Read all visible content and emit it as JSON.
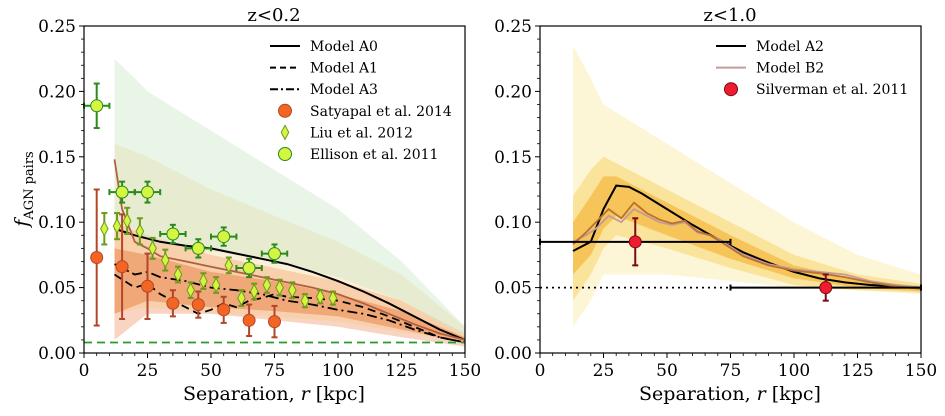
{
  "chart_data": [
    {
      "type": "line",
      "title": "z<0.2",
      "xlabel": "Separation, r [kpc]",
      "ylabel": "f_AGN pairs",
      "xlim": [
        0,
        150
      ],
      "ylim": [
        0,
        0.25
      ],
      "xticks": [
        0,
        25,
        50,
        75,
        100,
        125,
        150
      ],
      "yticks": [
        0.0,
        0.05,
        0.1,
        0.15,
        0.2,
        0.25
      ],
      "legend_position": "top-right",
      "series": [
        {
          "name": "Model A0",
          "style": "solid",
          "color": "#000000",
          "x": [
            12,
            20,
            30,
            40,
            50,
            60,
            70,
            80,
            90,
            100,
            110,
            120,
            130,
            140,
            150
          ],
          "y": [
            0.095,
            0.09,
            0.085,
            0.082,
            0.08,
            0.076,
            0.072,
            0.068,
            0.062,
            0.055,
            0.047,
            0.038,
            0.028,
            0.018,
            0.01
          ]
        },
        {
          "name": "Model A1",
          "style": "dashed",
          "color": "#000000",
          "x": [
            12,
            20,
            25,
            30,
            35,
            40,
            45,
            50,
            55,
            60,
            65,
            70,
            75,
            80,
            90,
            100,
            110,
            120,
            130,
            140,
            150
          ],
          "y": [
            0.06,
            0.05,
            0.053,
            0.045,
            0.04,
            0.035,
            0.03,
            0.033,
            0.038,
            0.035,
            0.04,
            0.042,
            0.045,
            0.043,
            0.042,
            0.04,
            0.035,
            0.028,
            0.02,
            0.012,
            0.008
          ]
        },
        {
          "name": "Model A3",
          "style": "dashdot",
          "color": "#000000",
          "x": [
            12,
            15,
            20,
            25,
            30,
            40,
            50,
            60,
            70,
            80,
            90,
            100,
            110,
            120,
            130,
            140,
            150
          ],
          "y": [
            0.068,
            0.065,
            0.06,
            0.062,
            0.058,
            0.055,
            0.05,
            0.048,
            0.045,
            0.04,
            0.037,
            0.033,
            0.03,
            0.025,
            0.018,
            0.012,
            0.008
          ]
        },
        {
          "name": "",
          "style": "solid",
          "color": "#b06040",
          "x": [
            12,
            15,
            20,
            25,
            30,
            40,
            50,
            60,
            70,
            80,
            90,
            100,
            110,
            120,
            130,
            140,
            150
          ],
          "y": [
            0.148,
            0.11,
            0.085,
            0.08,
            0.074,
            0.07,
            0.066,
            0.062,
            0.058,
            0.054,
            0.05,
            0.045,
            0.038,
            0.03,
            0.022,
            0.015,
            0.01
          ]
        },
        {
          "name": "",
          "style": "dashed",
          "color": "#2a9a2a",
          "x": [
            0,
            150
          ],
          "y": [
            0.008,
            0.008
          ]
        }
      ],
      "bands": [
        {
          "color": "#f5b89a",
          "opacity": 0.6,
          "x": [
            12,
            25,
            50,
            75,
            100,
            125,
            150
          ],
          "lower": [
            0.01,
            0.03,
            0.03,
            0.025,
            0.02,
            0.012,
            0.005
          ],
          "upper": [
            0.1,
            0.09,
            0.075,
            0.065,
            0.055,
            0.04,
            0.015
          ]
        },
        {
          "color": "#e86a3a",
          "opacity": 0.55,
          "x": [
            12,
            25,
            50,
            75,
            100,
            125,
            150
          ],
          "lower": [
            0.03,
            0.04,
            0.035,
            0.032,
            0.028,
            0.018,
            0.008
          ],
          "upper": [
            0.08,
            0.075,
            0.062,
            0.055,
            0.045,
            0.032,
            0.012
          ]
        },
        {
          "color": "#f5c97a",
          "opacity": 0.3,
          "x": [
            12,
            25,
            50,
            75,
            100,
            125,
            150
          ],
          "lower": [
            0.03,
            0.035,
            0.03,
            0.028,
            0.024,
            0.016,
            0.008
          ],
          "upper": [
            0.16,
            0.15,
            0.125,
            0.105,
            0.085,
            0.06,
            0.02
          ]
        },
        {
          "color": "#cfe8c9",
          "opacity": 0.45,
          "x": [
            12,
            20,
            25,
            50,
            75,
            100,
            125,
            150
          ],
          "lower": [
            0.1,
            0.095,
            0.085,
            0.078,
            0.07,
            0.058,
            0.04,
            0.012
          ],
          "upper": [
            0.225,
            0.21,
            0.2,
            0.17,
            0.14,
            0.11,
            0.07,
            0.02
          ]
        }
      ],
      "points": [
        {
          "name": "Satyapal et al. 2014",
          "marker": "circle",
          "color": "#f26522",
          "edge": "#b3462a",
          "x": [
            5,
            15,
            25,
            35,
            45,
            55,
            65,
            75
          ],
          "y": [
            0.073,
            0.066,
            0.051,
            0.038,
            0.037,
            0.033,
            0.025,
            0.024
          ],
          "yerr": [
            0.052,
            0.04,
            0.025,
            0.01,
            0.01,
            0.01,
            0.012,
            0.012
          ]
        },
        {
          "name": "Liu et al. 2012",
          "marker": "diamond",
          "color": "#d4f542",
          "edge": "#6d9a1a",
          "x": [
            8,
            13,
            17,
            22,
            27,
            32,
            37,
            42,
            47,
            52,
            57,
            62,
            67,
            72,
            77,
            82,
            87,
            93,
            98
          ],
          "y": [
            0.095,
            0.097,
            0.101,
            0.093,
            0.08,
            0.071,
            0.06,
            0.048,
            0.055,
            0.052,
            0.067,
            0.042,
            0.047,
            0.052,
            0.05,
            0.048,
            0.04,
            0.043,
            0.042
          ],
          "yerr": [
            0.012,
            0.01,
            0.01,
            0.01,
            0.008,
            0.008,
            0.006,
            0.006,
            0.006,
            0.006,
            0.006,
            0.006,
            0.006,
            0.006,
            0.006,
            0.006,
            0.005,
            0.005,
            0.005
          ]
        },
        {
          "name": "Ellison et al. 2011",
          "marker": "circle",
          "color": "#d4f542",
          "edge": "#2a8a1a",
          "x": [
            5,
            15,
            25,
            35,
            45,
            55,
            65,
            75
          ],
          "y": [
            0.189,
            0.123,
            0.123,
            0.091,
            0.08,
            0.089,
            0.065,
            0.076
          ],
          "yerr": [
            0.017,
            0.008,
            0.008,
            0.007,
            0.007,
            0.007,
            0.007,
            0.007
          ],
          "xerr": [
            5,
            5,
            5,
            5,
            5,
            5,
            5,
            5
          ]
        }
      ]
    },
    {
      "type": "line",
      "title": "z<1.0",
      "xlabel": "Separation, r [kpc]",
      "ylabel": "",
      "xlim": [
        0,
        150
      ],
      "ylim": [
        0,
        0.25
      ],
      "xticks": [
        0,
        25,
        50,
        75,
        100,
        125,
        150
      ],
      "yticks": [
        0.0,
        0.05,
        0.1,
        0.15,
        0.2,
        0.25
      ],
      "legend_position": "top-right",
      "series": [
        {
          "name": "Model A2",
          "style": "solid",
          "color": "#000000",
          "x": [
            13,
            20,
            25,
            30,
            35,
            40,
            50,
            60,
            70,
            80,
            90,
            100,
            110,
            120,
            130,
            140,
            150
          ],
          "y": [
            0.078,
            0.085,
            0.11,
            0.128,
            0.127,
            0.122,
            0.11,
            0.098,
            0.087,
            0.077,
            0.069,
            0.062,
            0.057,
            0.054,
            0.052,
            0.051,
            0.05
          ]
        },
        {
          "name": "Model B2",
          "style": "solid",
          "color": "#c49a9a",
          "x": [
            13,
            18,
            22,
            27,
            32,
            37,
            42,
            47,
            52,
            57,
            62,
            67,
            72,
            80,
            90,
            100,
            110,
            120,
            130,
            140,
            150
          ],
          "y": [
            0.085,
            0.09,
            0.095,
            0.105,
            0.1,
            0.11,
            0.105,
            0.1,
            0.098,
            0.1,
            0.092,
            0.09,
            0.085,
            0.075,
            0.068,
            0.064,
            0.062,
            0.06,
            0.055,
            0.052,
            0.05
          ]
        },
        {
          "name": "",
          "style": "solid",
          "color": "#b87033",
          "x": [
            13,
            18,
            22,
            27,
            32,
            37,
            42,
            47,
            52,
            57,
            62,
            67,
            72,
            80,
            90,
            100,
            110,
            120,
            130,
            140,
            150
          ],
          "y": [
            0.083,
            0.092,
            0.1,
            0.11,
            0.103,
            0.115,
            0.107,
            0.102,
            0.099,
            0.101,
            0.093,
            0.09,
            0.084,
            0.074,
            0.067,
            0.063,
            0.061,
            0.058,
            0.054,
            0.051,
            0.049
          ]
        },
        {
          "name": "",
          "style": "dotted",
          "color": "#000000",
          "x": [
            0,
            75
          ],
          "y": [
            0.05,
            0.05
          ]
        }
      ],
      "bands": [
        {
          "color": "#fbefb5",
          "opacity": 0.55,
          "x": [
            13,
            20,
            25,
            50,
            75,
            100,
            125,
            150
          ],
          "lower": [
            0.02,
            0.04,
            0.06,
            0.06,
            0.055,
            0.05,
            0.048,
            0.045
          ],
          "upper": [
            0.235,
            0.21,
            0.19,
            0.16,
            0.13,
            0.1,
            0.075,
            0.06
          ]
        },
        {
          "color": "#f7d46a",
          "opacity": 0.55,
          "x": [
            13,
            20,
            25,
            30,
            50,
            75,
            100,
            125,
            150
          ],
          "lower": [
            0.04,
            0.06,
            0.08,
            0.09,
            0.08,
            0.065,
            0.052,
            0.048,
            0.046
          ],
          "upper": [
            0.12,
            0.14,
            0.15,
            0.145,
            0.125,
            0.1,
            0.075,
            0.06,
            0.053
          ]
        },
        {
          "color": "#f2a516",
          "opacity": 0.5,
          "x": [
            13,
            20,
            25,
            30,
            50,
            75,
            100,
            125,
            150
          ],
          "lower": [
            0.06,
            0.075,
            0.095,
            0.105,
            0.09,
            0.072,
            0.057,
            0.05,
            0.047
          ],
          "upper": [
            0.1,
            0.12,
            0.135,
            0.135,
            0.115,
            0.09,
            0.067,
            0.056,
            0.051
          ]
        }
      ],
      "points": [
        {
          "name": "Silverman et al. 2011",
          "marker": "circle",
          "color": "#ee1c2e",
          "edge": "#7a0a14",
          "x": [
            37.5,
            112.5
          ],
          "y": [
            0.085,
            0.05
          ],
          "yerr": [
            0.018,
            0.01
          ],
          "xerr": [
            37.5,
            37.5
          ]
        }
      ]
    }
  ]
}
